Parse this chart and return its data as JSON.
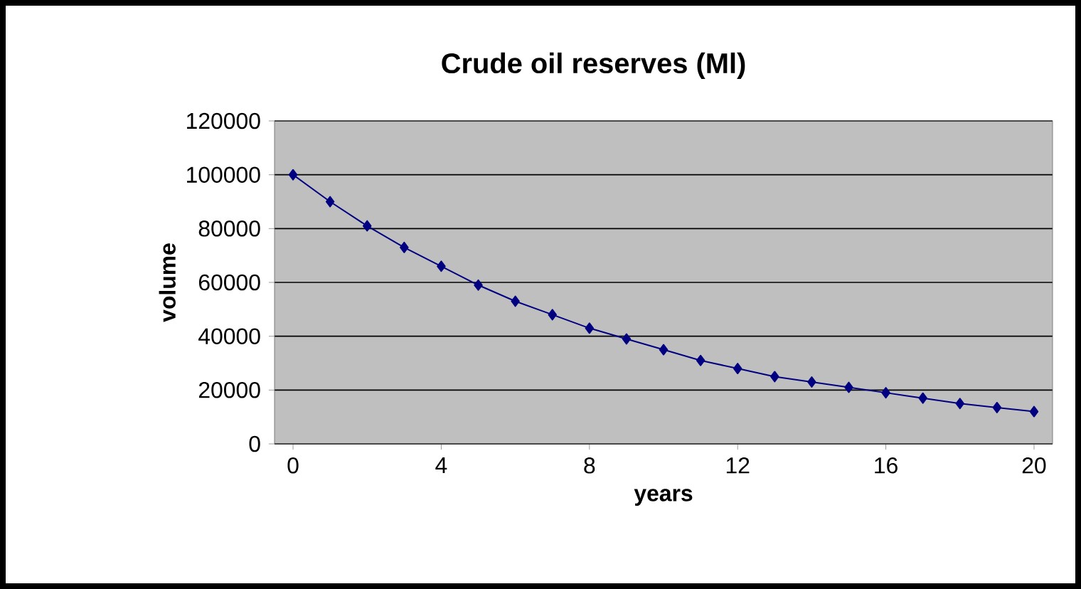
{
  "chart_data": {
    "type": "line",
    "title": "Crude oil reserves (Ml)",
    "xlabel": "years",
    "ylabel": "volume",
    "x": [
      0,
      1,
      2,
      3,
      4,
      5,
      6,
      7,
      8,
      9,
      10,
      11,
      12,
      13,
      14,
      15,
      16,
      17,
      18,
      19,
      20
    ],
    "series": [
      {
        "color": "#000080",
        "values": [
          100000,
          90000,
          81000,
          73000,
          66000,
          59000,
          53000,
          48000,
          43000,
          39000,
          35000,
          31000,
          28000,
          25000,
          23000,
          21000,
          19000,
          17000,
          15000,
          13500,
          12000
        ]
      }
    ],
    "xlim": [
      -0.5,
      20.5
    ],
    "xticks": [
      0,
      4,
      8,
      12,
      16,
      20
    ],
    "ylim": [
      0,
      120000
    ],
    "yticks": [
      0,
      20000,
      40000,
      60000,
      80000,
      100000,
      120000
    ],
    "grid": "y",
    "marker": "diamond",
    "line_style": "solid"
  }
}
